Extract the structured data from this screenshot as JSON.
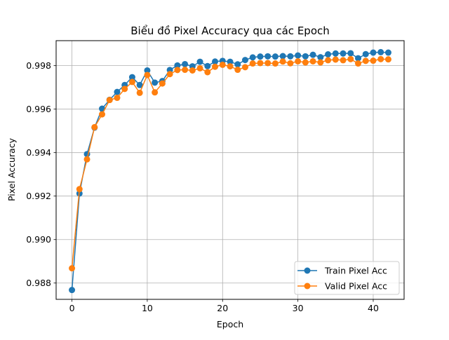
{
  "chart_data": {
    "type": "line",
    "title": "Biểu đồ Pixel Accuracy qua các Epoch",
    "xlabel": "Epoch",
    "ylabel": "Pixel Accuracy",
    "xlim": [
      -2.1,
      44.1
    ],
    "ylim": [
      0.98725,
      0.99915
    ],
    "xticks": [
      0,
      10,
      20,
      30,
      40
    ],
    "xtick_labels": [
      "0",
      "10",
      "20",
      "30",
      "40"
    ],
    "yticks": [
      0.988,
      0.99,
      0.992,
      0.994,
      0.996,
      0.998
    ],
    "ytick_labels": [
      "0.988",
      "0.990",
      "0.992",
      "0.994",
      "0.996",
      "0.998"
    ],
    "grid": true,
    "legend_position": "lower right",
    "x": [
      0,
      1,
      2,
      3,
      4,
      5,
      6,
      7,
      8,
      9,
      10,
      11,
      12,
      13,
      14,
      15,
      16,
      17,
      18,
      19,
      20,
      21,
      22,
      23,
      24,
      25,
      26,
      27,
      28,
      29,
      30,
      31,
      32,
      33,
      34,
      35,
      36,
      37,
      38,
      39,
      40,
      41,
      42
    ],
    "series": [
      {
        "name": "Train Pixel Acc",
        "color": "#1f77b4",
        "values": [
          0.98768,
          0.99212,
          0.99393,
          0.99515,
          0.99602,
          0.99643,
          0.99679,
          0.99711,
          0.99747,
          0.99711,
          0.99778,
          0.99722,
          0.99729,
          0.9978,
          0.99801,
          0.99807,
          0.99797,
          0.99818,
          0.99798,
          0.99819,
          0.99822,
          0.99818,
          0.99806,
          0.99826,
          0.99838,
          0.99842,
          0.99843,
          0.99842,
          0.99844,
          0.99843,
          0.99847,
          0.99843,
          0.9985,
          0.99839,
          0.99852,
          0.99856,
          0.99856,
          0.99857,
          0.99834,
          0.99853,
          0.9986,
          0.99862,
          0.9986
        ]
      },
      {
        "name": "Valid Pixel Acc",
        "color": "#ff7f0e",
        "values": [
          0.98868,
          0.99232,
          0.99369,
          0.99517,
          0.99576,
          0.99642,
          0.99652,
          0.99693,
          0.99725,
          0.99675,
          0.99757,
          0.99677,
          0.99718,
          0.99761,
          0.9978,
          0.99781,
          0.99778,
          0.99788,
          0.9977,
          0.99795,
          0.99804,
          0.99797,
          0.99781,
          0.99793,
          0.9981,
          0.99812,
          0.99812,
          0.9981,
          0.99819,
          0.99811,
          0.9982,
          0.99815,
          0.9982,
          0.99815,
          0.99825,
          0.99828,
          0.99825,
          0.9983,
          0.9981,
          0.99822,
          0.99823,
          0.9983,
          0.99829
        ]
      }
    ]
  }
}
